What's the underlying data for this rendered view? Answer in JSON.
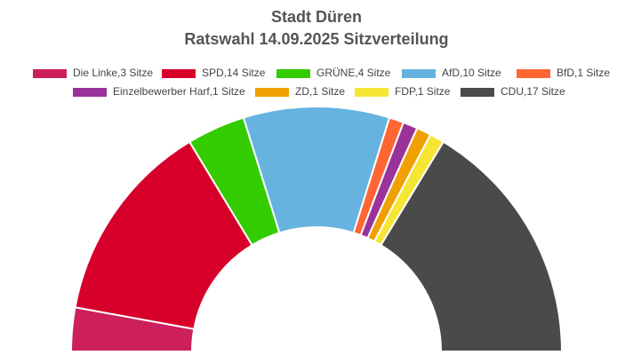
{
  "chart_data": {
    "type": "pie",
    "shape": "half-donut",
    "title": "Stadt Düren",
    "subtitle": "Ratswahl 14.09.2025 Sitzverteilung",
    "categories": [
      "Die Linke,3 Sitze",
      "SPD,14 Sitze",
      "GRÜNE,4 Sitze",
      "AfD,10 Sitze",
      "BfD,1 Sitze",
      "Einzelbewerber Harf,1 Sitze",
      "ZD,1 Sitze",
      "FDP,1 Sitze",
      "CDU,17 Sitze"
    ],
    "values": [
      3,
      14,
      4,
      10,
      1,
      1,
      1,
      1,
      17
    ],
    "colors": [
      "#cc1f5c",
      "#d6002b",
      "#33cc00",
      "#66b3e0",
      "#ff6633",
      "#993399",
      "#f0a000",
      "#f5e633",
      "#4a4a4a"
    ],
    "legend": "top"
  }
}
